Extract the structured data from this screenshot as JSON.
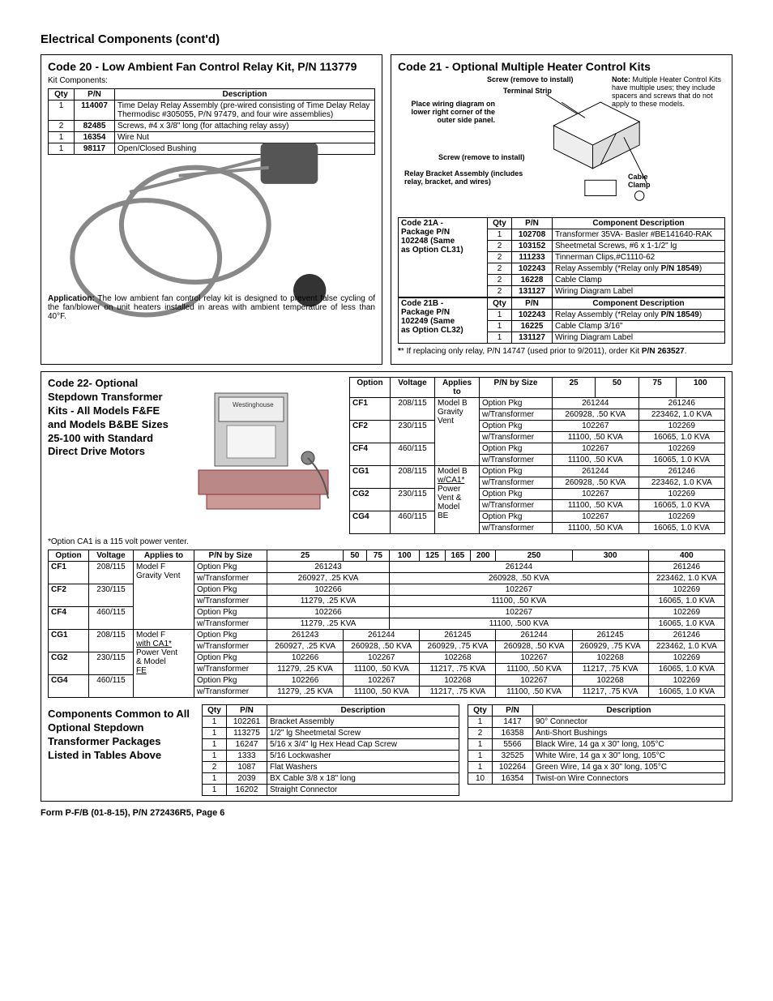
{
  "page_title": "Electrical Components (cont'd)",
  "footer": "Form P-F/B (01-8-15), P/N 272436R5, Page 6",
  "code20": {
    "title": "Code 20 - Low Ambient Fan Control Relay Kit, P/N 113779",
    "kit_components_label": "Kit Components:",
    "headers": [
      "Qty",
      "P/N",
      "Description"
    ],
    "rows": [
      [
        "1",
        "114007",
        "Time Delay Relay Assembly (pre-wired consisting of Time Delay Relay Thermodisc #305055, P/N 97479, and four wire assemblies)"
      ],
      [
        "2",
        "82485",
        "Screws, #4 x 3/8\" long (for attaching relay assy)"
      ],
      [
        "1",
        "16354",
        "Wire Nut"
      ],
      [
        "1",
        "98117",
        "Open/Closed Bushing"
      ]
    ],
    "application_label": "Application:",
    "application_text": " The low ambient fan control relay kit is designed to prevent false cycling of the fan/blower on unit heaters installed in areas with ambient temperature of less than 40°F."
  },
  "code21": {
    "title": "Code 21 - Optional Multiple Heater Control Kits",
    "diagram_labels": {
      "screw_top": "Screw (remove to install)",
      "terminal": "Terminal Strip",
      "place": "Place wiring diagram on lower right corner of the outer side panel.",
      "screw_bot": "Screw (remove to install)",
      "relay": "Relay Bracket Assembly (includes relay, bracket, and wires)",
      "note_label": "Note:",
      "note_text": " Multiple Heater Control Kits have multiple uses; they include spacers and screws that do not apply to these models.",
      "cable": "Cable Clamp"
    },
    "t21a": {
      "left": [
        "Code 21A -",
        "Package P/N",
        "102248 (Same",
        "as Option CL31)"
      ],
      "headers": [
        "Qty",
        "P/N",
        "Component Description"
      ],
      "rows": [
        [
          "1",
          "102708",
          "Transformer 35VA- Basler #BE141640-RAK"
        ],
        [
          "2",
          "103152",
          "Sheetmetal Screws, #6 x 1-1/2\" lg"
        ],
        [
          "2",
          "111233",
          "Tinnerman Clips,#C1110-62"
        ],
        [
          "2",
          "102243",
          {
            "pre": "Relay Assembly (*Relay only ",
            "bold": "P/N 18549",
            "post": ")"
          }
        ],
        [
          "2",
          "16228",
          "Cable Clamp"
        ],
        [
          "2",
          "131127",
          "Wiring Diagram Label"
        ]
      ]
    },
    "t21b": {
      "left": [
        "Code 21B -",
        "Package P/N",
        "102249 (Same",
        "as Option CL32)"
      ],
      "headers": [
        "Qty",
        "P/N",
        "Component Description"
      ],
      "rows": [
        [
          "1",
          "102243",
          {
            "pre": "Relay Assembly (*Relay only ",
            "bold": "P/N 18549",
            "post": ")"
          }
        ],
        [
          "1",
          "16225",
          "Cable Clamp 3/16\""
        ],
        [
          "1",
          "131127",
          "Wiring Diagram Label"
        ]
      ]
    },
    "footnote_pre": "* If replacing only relay, P/N 14747 (used prior to 9/2011), order Kit ",
    "footnote_bold": "P/N 263527",
    "footnote_post": "."
  },
  "code22": {
    "title": "Code 22- Optional Stepdown Transformer Kits - All Models F&FE and Models B&BE Sizes 25-100 with Standard Direct Drive Motors",
    "option_note": "*Option CA1 is a 115 volt power venter.",
    "upper_table": {
      "headers": [
        "Option",
        "Voltage",
        "Applies to",
        "P/N by Size",
        "25",
        "50",
        "75",
        "100"
      ],
      "rows": [
        {
          "option": "CF1",
          "volt": "208/115",
          "applies_span": 3,
          "applies": "Model B Gravity Vent",
          "type": "Option Pkg",
          "c25_50": "261244",
          "c75_100": "261246"
        },
        {
          "type": "w/Transformer",
          "c25_50": "260928, .50 KVA",
          "c75_100": "223462, 1.0 KVA"
        },
        {
          "option": "CF2",
          "volt": "230/115",
          "type": "Option Pkg",
          "c25_50": "102267",
          "c75_100": "102269"
        },
        {
          "type": "w/Transformer",
          "c25_50": "11100, .50 KVA",
          "c75_100": "16065, 1.0 KVA"
        },
        {
          "option": "CF4",
          "volt": "460/115",
          "type": "Option Pkg",
          "c25_50": "102267",
          "c75_100": "102269"
        },
        {
          "type": "w/Transformer",
          "c25_50": "11100, .50 KVA",
          "c75_100": "16065, 1.0 KVA"
        },
        {
          "option": "CG1",
          "volt": "208/115",
          "applies_span": 3,
          "applies_lines": [
            "Model B",
            "w/CA1*",
            "Power",
            "Vent &",
            "Model",
            "BE"
          ],
          "type": "Option Pkg",
          "c25_50": "261244",
          "c75_100": "261246"
        },
        {
          "type": "w/Transformer",
          "c25_50": "260928, .50 KVA",
          "c75_100": "223462, 1.0 KVA"
        },
        {
          "option": "CG2",
          "volt": "230/115",
          "type": "Option Pkg",
          "c25_50": "102267",
          "c75_100": "102269"
        },
        {
          "type": "w/Transformer",
          "c25_50": "11100, .50 KVA",
          "c75_100": "16065, 1.0 KVA"
        },
        {
          "option": "CG4",
          "volt": "460/115",
          "type": "Option Pkg",
          "c25_50": "102267",
          "c75_100": "102269"
        },
        {
          "type": "w/Transformer",
          "c25_50": "11100, .50 KVA",
          "c75_100": "16065, 1.0 KVA"
        }
      ]
    },
    "lower_table": {
      "headers": [
        "Option",
        "Voltage",
        "Applies to",
        "P/N by Size",
        "25",
        "50",
        "75",
        "100",
        "125",
        "165",
        "200",
        "250",
        "300",
        "400"
      ],
      "group1_applies": "Model F Gravity Vent",
      "group2_applies_lines": [
        "Model F",
        "with CA1*",
        "Power Vent",
        "& Model",
        "FE"
      ],
      "rows": [
        {
          "option": "CF1",
          "volt": "208/115",
          "type": "Option Pkg",
          "g1": "261243",
          "g2": "261244",
          "g3": "261246"
        },
        {
          "type": "w/Transformer",
          "g1": "260927, .25 KVA",
          "g2": "260928, .50 KVA",
          "g3": "223462, 1.0 KVA"
        },
        {
          "option": "CF2",
          "volt": "230/115",
          "type": "Option Pkg",
          "g1": "102266",
          "g2": "102267",
          "g3": "102269"
        },
        {
          "type": "w/Transformer",
          "g1": "11279, .25 KVA",
          "g2": "11100, .50 KVA",
          "g3": "16065, 1.0 KVA"
        },
        {
          "option": "CF4",
          "volt": "460/115",
          "type": "Option Pkg",
          "g1": "102266",
          "g2": "102267",
          "g3": "102269"
        },
        {
          "type": "w/Transformer",
          "g1": "11279, .25 KVA",
          "g2": "11100, .500 KVA",
          "g3": "16065, 1.0 KVA"
        },
        {
          "option": "CG1",
          "volt": "208/115",
          "type": "Option Pkg",
          "a": "261243",
          "b": "261244",
          "c": "261245",
          "d": "261244",
          "e": "261245",
          "f": "261246"
        },
        {
          "type": "w/Transformer",
          "a": "260927, .25 KVA",
          "b": "260928, .50 KVA",
          "c": "260929, .75 KVA",
          "d": "260928, .50 KVA",
          "e": "260929, .75 KVA",
          "f": "223462, 1.0 KVA"
        },
        {
          "option": "CG2",
          "volt": "230/115",
          "type": "Option Pkg",
          "a": "102266",
          "b": "102267",
          "c": "102268",
          "d": "102267",
          "e": "102268",
          "f": "102269"
        },
        {
          "type": "w/Transformer",
          "a": "11279, .25 KVA",
          "b": "11100, .50 KVA",
          "c": "11217, .75 KVA",
          "d": "11100, .50 KVA",
          "e": "11217, .75 KVA",
          "f": "16065, 1.0 KVA"
        },
        {
          "option": "CG4",
          "volt": "460/115",
          "type": "Option Pkg",
          "a": "102266",
          "b": "102267",
          "c": "102268",
          "d": "102267",
          "e": "102268",
          "f": "102269"
        },
        {
          "type": "w/Transformer",
          "a": "11279, .25 KVA",
          "b": "11100, .50 KVA",
          "c": "11217, .75 KVA",
          "d": "11100, .50 KVA",
          "e": "11217, .75 KVA",
          "f": "16065, 1.0 KVA"
        }
      ]
    }
  },
  "components_common": {
    "title": "Components Common to All Optional Stepdown Transformer Packages Listed in Tables Above",
    "headers": [
      "Qty",
      "P/N",
      "Description"
    ],
    "left_rows": [
      [
        "1",
        "102261",
        "Bracket Assembly"
      ],
      [
        "1",
        "113275",
        "1/2\" lg Sheetmetal Screw"
      ],
      [
        "1",
        "16247",
        "5/16 x 3/4\" lg Hex Head Cap Screw"
      ],
      [
        "1",
        "1333",
        "5/16 Lockwasher"
      ],
      [
        "2",
        "1087",
        "Flat Washers"
      ],
      [
        "1",
        "2039",
        "BX Cable 3/8 x 18\" long"
      ],
      [
        "1",
        "16202",
        "Straight Connector"
      ]
    ],
    "right_rows": [
      [
        "1",
        "1417",
        "90° Connector"
      ],
      [
        "2",
        "16358",
        "Anti-Short Bushings"
      ],
      [
        "1",
        "5566",
        "Black Wire, 14 ga x 30\" long, 105°C"
      ],
      [
        "1",
        "32525",
        "White Wire, 14 ga x 30\" long, 105°C"
      ],
      [
        "1",
        "102264",
        "Green Wire, 14 ga x 30\" long, 105°C"
      ],
      [
        "10",
        "16354",
        "Twist-on Wire Connectors"
      ]
    ]
  }
}
